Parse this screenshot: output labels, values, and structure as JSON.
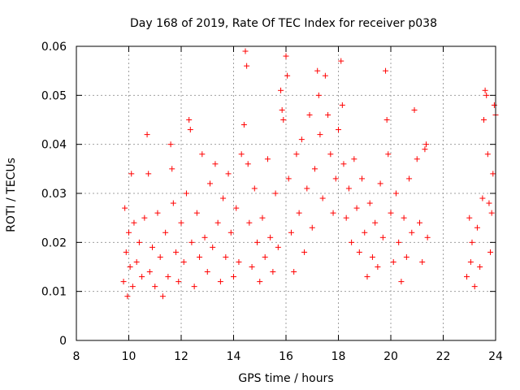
{
  "chart_data": {
    "type": "scatter",
    "title": "Day 168 of 2019, Rate Of TEC Index for receiver p038",
    "xlabel": "GPS time / hours",
    "ylabel": "ROTI / TECUs",
    "xlim": [
      8,
      24
    ],
    "ylim": [
      0,
      0.06
    ],
    "xticks": [
      8,
      10,
      12,
      14,
      16,
      18,
      20,
      22,
      24
    ],
    "xtick_labels": [
      "8",
      "10",
      "12",
      "14",
      "16",
      "18",
      "20",
      "22",
      "24"
    ],
    "yticks": [
      0,
      0.01,
      0.02,
      0.03,
      0.04,
      0.05,
      0.06
    ],
    "ytick_labels": [
      "0",
      "0.01",
      "0.02",
      "0.03",
      "0.04",
      "0.05",
      "0.06"
    ],
    "grid": true,
    "marker": "+",
    "series": [
      {
        "name": "ROTI",
        "color": "#ff0000",
        "points": [
          [
            9.8,
            0.012
          ],
          [
            9.85,
            0.027
          ],
          [
            9.9,
            0.018
          ],
          [
            9.95,
            0.009
          ],
          [
            10.0,
            0.022
          ],
          [
            10.05,
            0.015
          ],
          [
            10.1,
            0.034
          ],
          [
            10.15,
            0.011
          ],
          [
            10.2,
            0.024
          ],
          [
            10.3,
            0.016
          ],
          [
            10.4,
            0.02
          ],
          [
            10.5,
            0.013
          ],
          [
            10.6,
            0.025
          ],
          [
            10.7,
            0.042
          ],
          [
            10.75,
            0.034
          ],
          [
            10.8,
            0.014
          ],
          [
            10.9,
            0.019
          ],
          [
            11.0,
            0.011
          ],
          [
            11.1,
            0.026
          ],
          [
            11.2,
            0.017
          ],
          [
            11.3,
            0.009
          ],
          [
            11.4,
            0.022
          ],
          [
            11.5,
            0.013
          ],
          [
            11.6,
            0.04
          ],
          [
            11.65,
            0.035
          ],
          [
            11.7,
            0.028
          ],
          [
            11.8,
            0.018
          ],
          [
            11.9,
            0.012
          ],
          [
            12.0,
            0.024
          ],
          [
            12.1,
            0.016
          ],
          [
            12.2,
            0.03
          ],
          [
            12.3,
            0.045
          ],
          [
            12.35,
            0.043
          ],
          [
            12.4,
            0.02
          ],
          [
            12.5,
            0.011
          ],
          [
            12.6,
            0.026
          ],
          [
            12.7,
            0.017
          ],
          [
            12.8,
            0.038
          ],
          [
            12.9,
            0.021
          ],
          [
            13.0,
            0.014
          ],
          [
            13.1,
            0.032
          ],
          [
            13.2,
            0.019
          ],
          [
            13.3,
            0.036
          ],
          [
            13.4,
            0.024
          ],
          [
            13.5,
            0.012
          ],
          [
            13.6,
            0.029
          ],
          [
            13.7,
            0.017
          ],
          [
            13.8,
            0.034
          ],
          [
            13.9,
            0.022
          ],
          [
            14.0,
            0.013
          ],
          [
            14.1,
            0.027
          ],
          [
            14.2,
            0.016
          ],
          [
            14.3,
            0.038
          ],
          [
            14.4,
            0.044
          ],
          [
            14.45,
            0.059
          ],
          [
            14.5,
            0.056
          ],
          [
            14.55,
            0.036
          ],
          [
            14.6,
            0.024
          ],
          [
            14.7,
            0.015
          ],
          [
            14.8,
            0.031
          ],
          [
            14.9,
            0.02
          ],
          [
            15.0,
            0.012
          ],
          [
            15.1,
            0.025
          ],
          [
            15.2,
            0.017
          ],
          [
            15.3,
            0.037
          ],
          [
            15.4,
            0.021
          ],
          [
            15.5,
            0.014
          ],
          [
            15.6,
            0.03
          ],
          [
            15.7,
            0.019
          ],
          [
            15.8,
            0.051
          ],
          [
            15.85,
            0.047
          ],
          [
            15.9,
            0.045
          ],
          [
            16.0,
            0.058
          ],
          [
            16.05,
            0.054
          ],
          [
            16.1,
            0.033
          ],
          [
            16.2,
            0.022
          ],
          [
            16.3,
            0.014
          ],
          [
            16.4,
            0.038
          ],
          [
            16.5,
            0.026
          ],
          [
            16.6,
            0.041
          ],
          [
            16.7,
            0.018
          ],
          [
            16.8,
            0.031
          ],
          [
            16.9,
            0.046
          ],
          [
            17.0,
            0.023
          ],
          [
            17.1,
            0.035
          ],
          [
            17.2,
            0.055
          ],
          [
            17.25,
            0.05
          ],
          [
            17.3,
            0.042
          ],
          [
            17.4,
            0.029
          ],
          [
            17.5,
            0.054
          ],
          [
            17.6,
            0.046
          ],
          [
            17.7,
            0.038
          ],
          [
            17.8,
            0.026
          ],
          [
            17.9,
            0.033
          ],
          [
            18.0,
            0.043
          ],
          [
            18.1,
            0.057
          ],
          [
            18.15,
            0.048
          ],
          [
            18.2,
            0.036
          ],
          [
            18.3,
            0.025
          ],
          [
            18.4,
            0.031
          ],
          [
            18.5,
            0.02
          ],
          [
            18.6,
            0.037
          ],
          [
            18.7,
            0.027
          ],
          [
            18.8,
            0.018
          ],
          [
            18.9,
            0.033
          ],
          [
            19.0,
            0.022
          ],
          [
            19.1,
            0.013
          ],
          [
            19.2,
            0.028
          ],
          [
            19.3,
            0.017
          ],
          [
            19.4,
            0.024
          ],
          [
            19.5,
            0.015
          ],
          [
            19.6,
            0.032
          ],
          [
            19.7,
            0.021
          ],
          [
            19.8,
            0.055
          ],
          [
            19.85,
            0.045
          ],
          [
            19.9,
            0.038
          ],
          [
            20.0,
            0.026
          ],
          [
            20.1,
            0.016
          ],
          [
            20.2,
            0.03
          ],
          [
            20.3,
            0.02
          ],
          [
            20.4,
            0.012
          ],
          [
            20.5,
            0.025
          ],
          [
            20.6,
            0.017
          ],
          [
            20.7,
            0.033
          ],
          [
            20.8,
            0.022
          ],
          [
            20.9,
            0.047
          ],
          [
            21.0,
            0.037
          ],
          [
            21.1,
            0.024
          ],
          [
            21.2,
            0.016
          ],
          [
            21.3,
            0.039
          ],
          [
            21.35,
            0.04
          ],
          [
            21.4,
            0.021
          ],
          [
            22.9,
            0.013
          ],
          [
            23.0,
            0.025
          ],
          [
            23.05,
            0.016
          ],
          [
            23.1,
            0.02
          ],
          [
            23.2,
            0.011
          ],
          [
            23.3,
            0.023
          ],
          [
            23.4,
            0.015
          ],
          [
            23.5,
            0.029
          ],
          [
            23.55,
            0.045
          ],
          [
            23.6,
            0.051
          ],
          [
            23.65,
            0.05
          ],
          [
            23.7,
            0.038
          ],
          [
            23.75,
            0.028
          ],
          [
            23.8,
            0.018
          ],
          [
            23.85,
            0.026
          ],
          [
            23.9,
            0.034
          ],
          [
            23.95,
            0.048
          ],
          [
            24.0,
            0.046
          ]
        ]
      }
    ]
  }
}
